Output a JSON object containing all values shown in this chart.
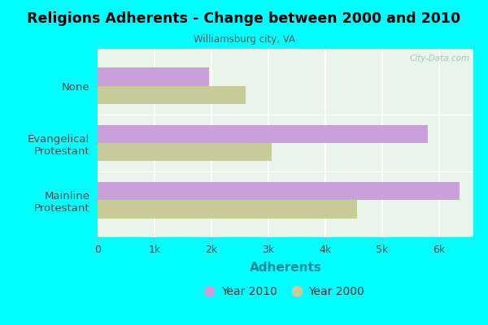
{
  "title": "Religions Adherents - Change between 2000 and 2010",
  "subtitle": "Williamsburg city, VA",
  "categories": [
    "Mainline\nProtestant",
    "Evangelical\nProtestant",
    "None"
  ],
  "year2010_values": [
    6350,
    5800,
    1950
  ],
  "year2000_values": [
    4550,
    3050,
    2600
  ],
  "year2010_color": "#c9a0dc",
  "year2000_color": "#c8cc99",
  "background_color": "#00ffff",
  "plot_background_color": "#e8f5e8",
  "xlabel": "Adherents",
  "xlim": [
    0,
    6600
  ],
  "xtick_labels": [
    "0",
    "1k",
    "2k",
    "3k",
    "4k",
    "5k",
    "6k"
  ],
  "xtick_values": [
    0,
    1000,
    2000,
    3000,
    4000,
    5000,
    6000
  ],
  "bar_height": 0.32,
  "legend_labels": [
    "Year 2010",
    "Year 2000"
  ],
  "watermark": "City-Data.com"
}
